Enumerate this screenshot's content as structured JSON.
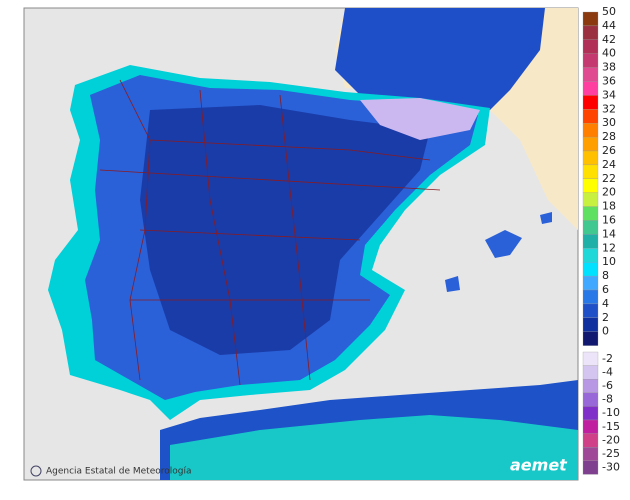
{
  "legend": {
    "upper": [
      {
        "label": "50",
        "color": "#8b3a10"
      },
      {
        "label": "44",
        "color": "#9a3040"
      },
      {
        "label": "42",
        "color": "#b03058"
      },
      {
        "label": "40",
        "color": "#c43a70"
      },
      {
        "label": "38",
        "color": "#e04a90"
      },
      {
        "label": "36",
        "color": "#ff40a0"
      },
      {
        "label": "34",
        "color": "#ff0000"
      },
      {
        "label": "32",
        "color": "#ff4400"
      },
      {
        "label": "30",
        "color": "#ff8000"
      },
      {
        "label": "28",
        "color": "#ffa000"
      },
      {
        "label": "26",
        "color": "#ffc000"
      },
      {
        "label": "24",
        "color": "#ffe000"
      },
      {
        "label": "22",
        "color": "#ffff00"
      },
      {
        "label": "20",
        "color": "#c8f040"
      },
      {
        "label": "18",
        "color": "#60e060"
      },
      {
        "label": "16",
        "color": "#40c890"
      },
      {
        "label": "14",
        "color": "#20b0a8"
      },
      {
        "label": "12",
        "color": "#20d8d8"
      },
      {
        "label": "10",
        "color": "#00e0ff"
      },
      {
        "label": "8",
        "color": "#40a8ff"
      },
      {
        "label": "6",
        "color": "#2878e8"
      },
      {
        "label": "4",
        "color": "#2050c8"
      },
      {
        "label": "2",
        "color": "#1030a0"
      },
      {
        "label": "0",
        "color": "#101870"
      }
    ],
    "lower": [
      {
        "label": "-2",
        "color": "#ece4f8"
      },
      {
        "label": "-4",
        "color": "#d4c4f0"
      },
      {
        "label": "-6",
        "color": "#b898e4"
      },
      {
        "label": "-8",
        "color": "#9868d8"
      },
      {
        "label": "-10",
        "color": "#8030c8"
      },
      {
        "label": "-15",
        "color": "#c020a0"
      },
      {
        "label": "-20",
        "color": "#d04088"
      },
      {
        "label": "-25",
        "color": "#a04898"
      },
      {
        "label": "-30",
        "color": "#804090"
      }
    ]
  },
  "footer": {
    "credit": "Agencia Estatal de Meteorología",
    "logo": "aemet"
  }
}
